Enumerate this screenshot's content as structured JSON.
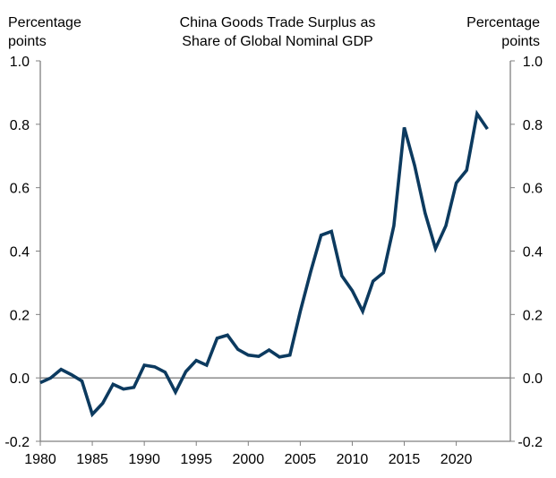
{
  "chart_data": {
    "type": "line",
    "title": "China Goods Trade Surplus as Share of Global Nominal GDP",
    "title_lines": [
      "China Goods Trade Surplus as",
      "Share of Global Nominal GDP"
    ],
    "ylabel_left": [
      "Percentage",
      "points"
    ],
    "ylabel_right": [
      "Percentage",
      "points"
    ],
    "xlabel": "",
    "ylim": [
      -0.2,
      1.0
    ],
    "yticks": [
      "1.0",
      "0.8",
      "0.6",
      "0.4",
      "0.2",
      "0.0",
      "-0.2"
    ],
    "ytick_values": [
      1.0,
      0.8,
      0.6,
      0.4,
      0.2,
      0.0,
      -0.2
    ],
    "xticks": [
      "1980",
      "1985",
      "1990",
      "1995",
      "2000",
      "2005",
      "2010",
      "2015",
      "2020"
    ],
    "grid": false,
    "legend": "none",
    "line_color": "#0c3a5f",
    "x": [
      1980,
      1981,
      1982,
      1983,
      1984,
      1985,
      1986,
      1987,
      1988,
      1989,
      1990,
      1991,
      1992,
      1993,
      1994,
      1995,
      1996,
      1997,
      1998,
      1999,
      2000,
      2001,
      2002,
      2003,
      2004,
      2005,
      2006,
      2007,
      2008,
      2009,
      2010,
      2011,
      2012,
      2013,
      2014,
      2015,
      2016,
      2017,
      2018,
      2019,
      2020,
      2021,
      2022,
      2023
    ],
    "values": [
      -0.015,
      0.0,
      0.027,
      0.01,
      -0.01,
      -0.115,
      -0.08,
      -0.02,
      -0.035,
      -0.03,
      0.04,
      0.035,
      0.018,
      -0.045,
      0.02,
      0.055,
      0.04,
      0.125,
      0.135,
      0.09,
      0.072,
      0.068,
      0.088,
      0.066,
      0.072,
      0.21,
      0.335,
      0.45,
      0.462,
      0.322,
      0.275,
      0.21,
      0.305,
      0.332,
      0.48,
      0.79,
      0.67,
      0.52,
      0.408,
      0.48,
      0.615,
      0.655,
      0.833,
      0.785
    ]
  }
}
